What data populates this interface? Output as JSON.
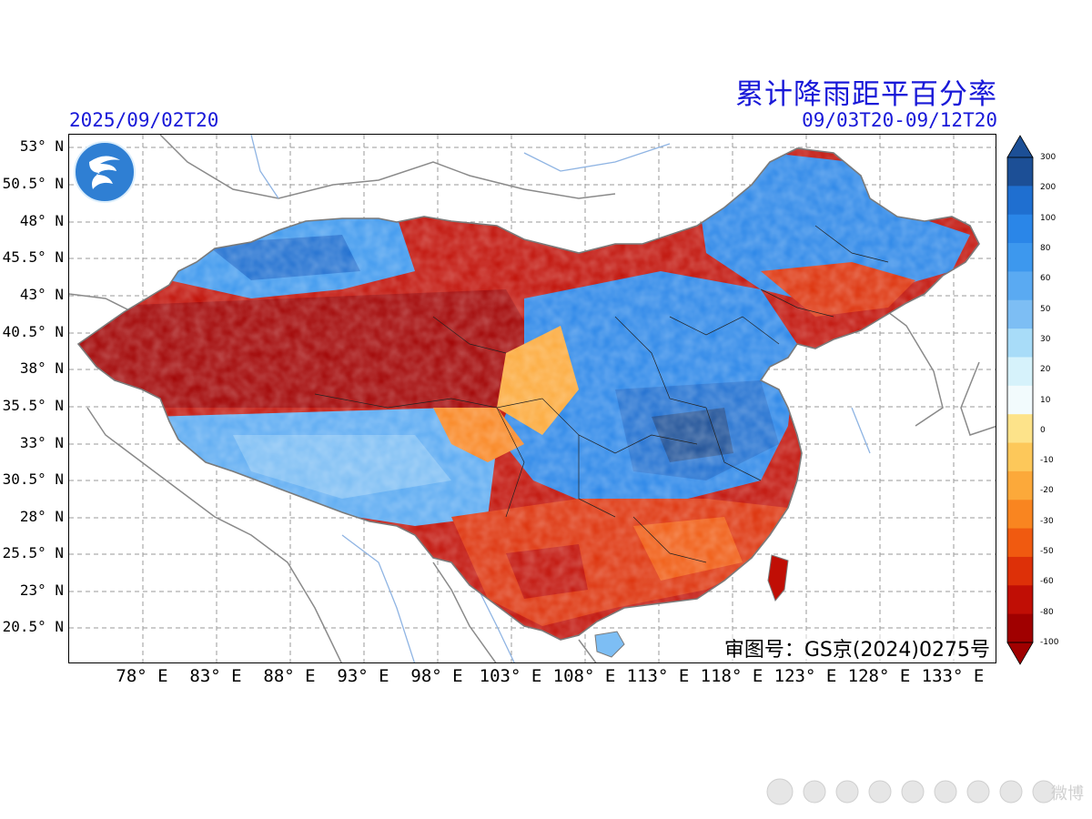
{
  "header": {
    "title": "累计降雨距平百分率",
    "init_time": "2025/09/02T20",
    "valid_range": "09/03T20-09/12T20"
  },
  "map": {
    "approval_number": "审图号：GS京(2024)0275号",
    "logo_icon": "weather-service-logo-icon",
    "lat_labels": [
      "53° N",
      "50.5° N",
      "48° N",
      "45.5° N",
      "43° N",
      "40.5° N",
      "38° N",
      "35.5° N",
      "33° N",
      "30.5° N",
      "28° N",
      "25.5° N",
      "23° N",
      "20.5° N"
    ],
    "lon_labels": [
      "78° E",
      "83° E",
      "88° E",
      "93° E",
      "98° E",
      "103° E",
      "108° E",
      "113° E",
      "118° E",
      "123° E",
      "128° E",
      "133° E"
    ],
    "regions": [
      {
        "name": "western-northwest",
        "class": "-100"
      },
      {
        "name": "north-xinjiang",
        "class": "60"
      },
      {
        "name": "central-east-china",
        "class": "100"
      },
      {
        "name": "south-china",
        "class": "-60"
      },
      {
        "name": "northeast-china",
        "class": "100"
      }
    ]
  },
  "colorbar": {
    "ticks": [
      "300",
      "200",
      "100",
      "80",
      "60",
      "50",
      "30",
      "20",
      "10",
      "0",
      "-10",
      "-20",
      "-30",
      "-50",
      "-60",
      "-80",
      "-100"
    ],
    "colors": [
      "#1c4f96",
      "#1f6fd0",
      "#2a86e8",
      "#3d98ee",
      "#5aaaf2",
      "#7dbef4",
      "#a8dcf8",
      "#d6f2fb",
      "#f2fbfd",
      "#fde38a",
      "#fdc85a",
      "#fca93a",
      "#f98520",
      "#f05a10",
      "#dd3008",
      "#c00e05",
      "#a00000"
    ]
  },
  "watermark": {
    "text": "微博"
  }
}
